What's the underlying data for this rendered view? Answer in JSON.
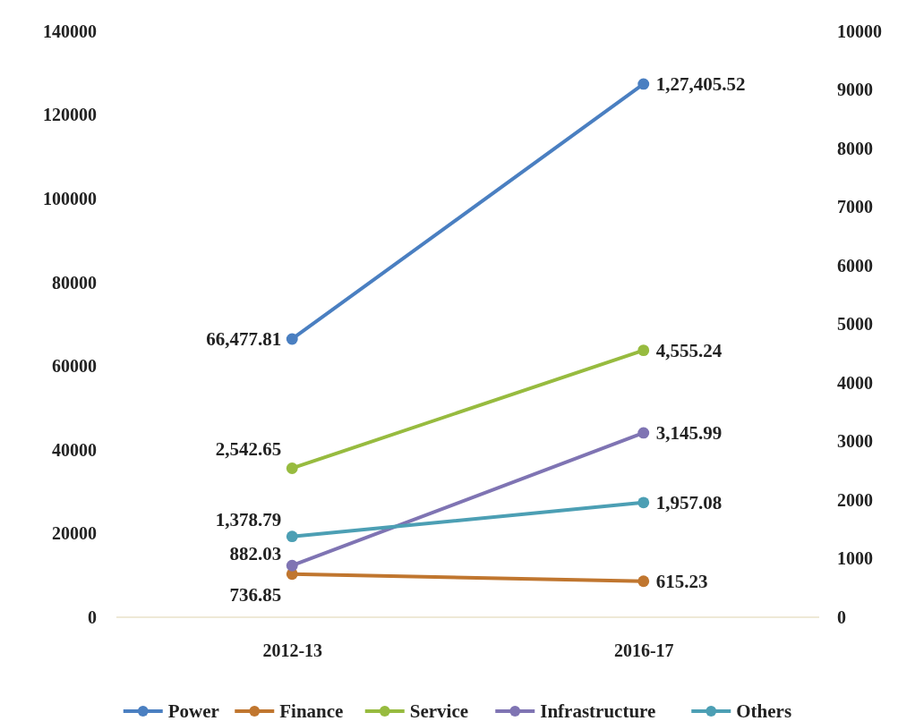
{
  "chart_data": {
    "type": "line",
    "categories": [
      "2012-13",
      "2016-17"
    ],
    "series": [
      {
        "name": "Power",
        "color": "#4a7fc1",
        "values": [
          66477.81,
          127405.52
        ],
        "value_labels": [
          "66,477.81",
          "1,27,405.52"
        ]
      },
      {
        "name": "Finance",
        "color": "#c0762f",
        "values": [
          736.85,
          615.23
        ],
        "axis": "y2",
        "value_labels": [
          "736.85",
          "615.23"
        ]
      },
      {
        "name": "Service",
        "color": "#97bb3f",
        "values": [
          2542.65,
          4555.24
        ],
        "axis": "y2",
        "value_labels": [
          "2,542.65",
          "4,555.24"
        ]
      },
      {
        "name": "Infrastructure",
        "color": "#7f74b3",
        "values": [
          882.03,
          3145.99
        ],
        "axis": "y2",
        "value_labels": [
          "882.03",
          "3,145.99"
        ]
      },
      {
        "name": "Others",
        "color": "#4c9fb4",
        "values": [
          1378.79,
          1957.08
        ],
        "axis": "y2",
        "value_labels": [
          "1,378.79",
          "1,957.08"
        ]
      }
    ],
    "ylim": [
      0,
      140000
    ],
    "yticks": [
      0,
      20000,
      40000,
      60000,
      80000,
      100000,
      120000,
      140000
    ],
    "y2lim": [
      0,
      10000
    ],
    "y2ticks": [
      0,
      1000,
      2000,
      3000,
      4000,
      5000,
      6000,
      7000,
      8000,
      9000,
      10000
    ],
    "grid": false,
    "legend": "bottom",
    "marker": "circle",
    "line_style": "solid"
  }
}
